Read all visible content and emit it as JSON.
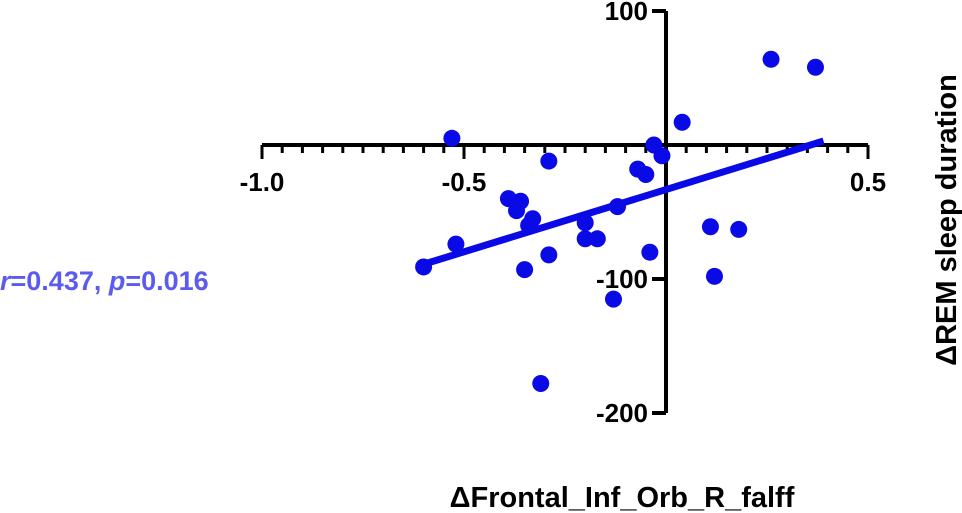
{
  "chart_data": {
    "type": "scatter",
    "xlabel": "ΔFrontal_Inf_Orb_R_falff",
    "ylabel": "ΔREM sleep duration",
    "xlim": [
      -1.0,
      0.5
    ],
    "ylim": [
      -200,
      100
    ],
    "x_ticks": [
      "-1.0",
      "-0.5",
      "0.5"
    ],
    "y_ticks": [
      "100",
      "-100",
      "-200"
    ],
    "x_minor_step": 0.05,
    "y_tick_values": [
      100,
      0,
      -100,
      -200
    ],
    "grid": false,
    "point_color": "#0a0ae6",
    "line_color": "#0a0ae6",
    "annotation_color": "#5b5bef",
    "points": [
      {
        "x": -0.53,
        "y": 5
      },
      {
        "x": -0.03,
        "y": 0
      },
      {
        "x": 0.04,
        "y": 17
      },
      {
        "x": 0.26,
        "y": 64
      },
      {
        "x": 0.37,
        "y": 58
      },
      {
        "x": -0.29,
        "y": -12
      },
      {
        "x": -0.07,
        "y": -18
      },
      {
        "x": -0.05,
        "y": -22
      },
      {
        "x": -0.01,
        "y": -8
      },
      {
        "x": -0.39,
        "y": -40
      },
      {
        "x": -0.36,
        "y": -42
      },
      {
        "x": -0.37,
        "y": -49
      },
      {
        "x": -0.33,
        "y": -55
      },
      {
        "x": -0.34,
        "y": -60
      },
      {
        "x": -0.12,
        "y": -46
      },
      {
        "x": -0.2,
        "y": -58
      },
      {
        "x": -0.2,
        "y": -70
      },
      {
        "x": -0.17,
        "y": -70
      },
      {
        "x": -0.52,
        "y": -74
      },
      {
        "x": -0.29,
        "y": -82
      },
      {
        "x": -0.35,
        "y": -93
      },
      {
        "x": -0.04,
        "y": -80
      },
      {
        "x": 0.11,
        "y": -61
      },
      {
        "x": 0.18,
        "y": -63
      },
      {
        "x": 0.12,
        "y": -98
      },
      {
        "x": -0.6,
        "y": -91
      },
      {
        "x": -0.13,
        "y": -115
      },
      {
        "x": -0.31,
        "y": -178
      }
    ],
    "fit_line": {
      "x": [
        -0.6,
        0.39
      ],
      "y": [
        -89,
        3
      ]
    },
    "annotation": {
      "r_label": "r",
      "r_value": "=0.437, ",
      "p_label": "p",
      "p_value": "=0.016"
    }
  }
}
